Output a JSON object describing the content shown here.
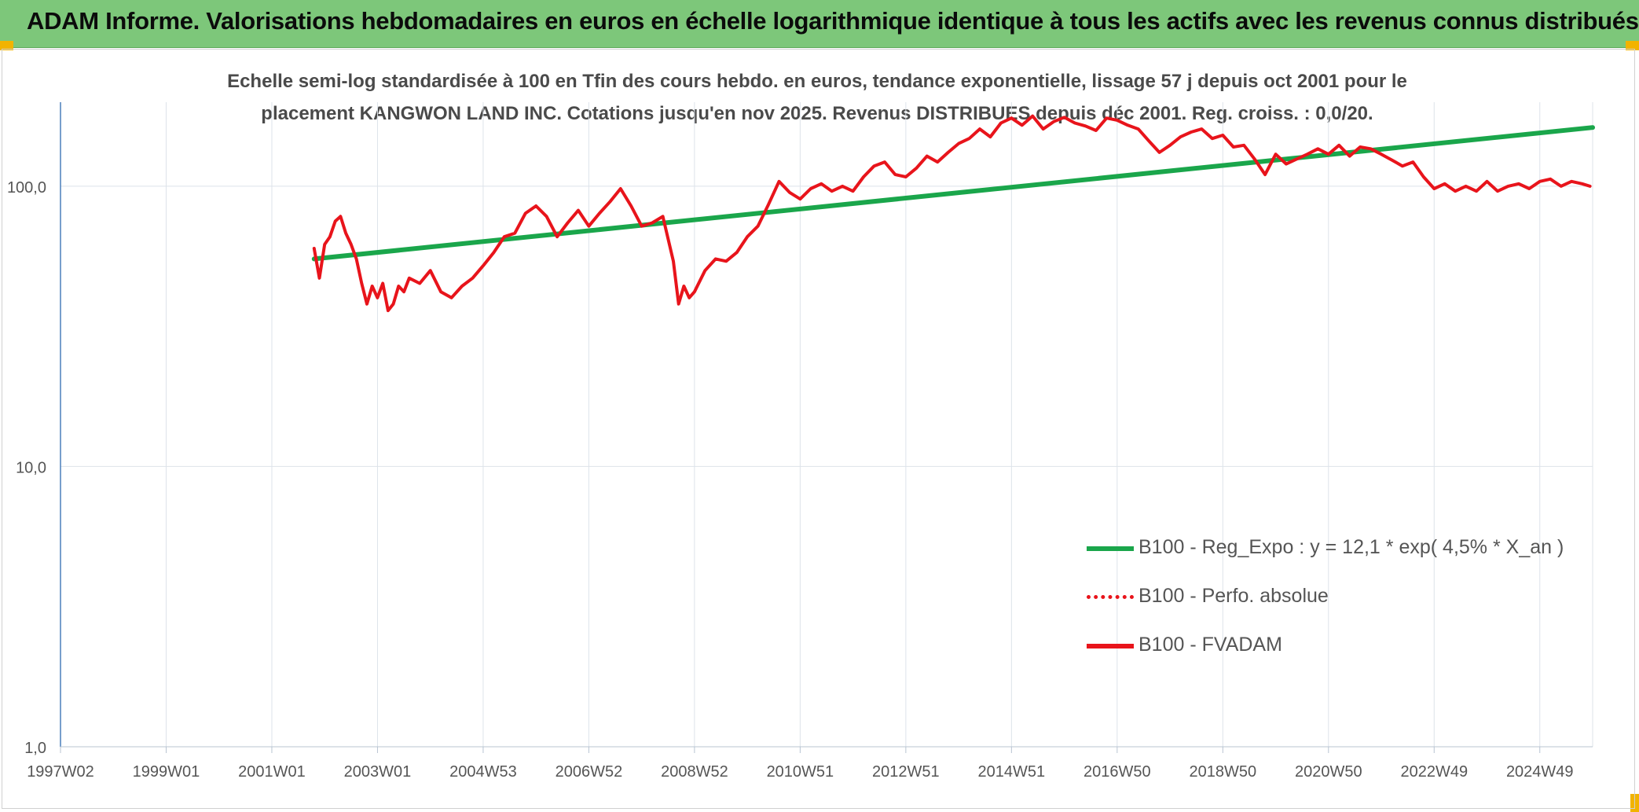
{
  "header": {
    "title": "ADAM Informe. Valorisations hebdomadaires en euros en échelle logarithmique identique à tous les actifs avec les revenus connus distribués"
  },
  "chart_data": {
    "type": "line",
    "title_line1": "Echelle semi-log standardisée à 100 en Tfin des cours hebdo. en euros, tendance exponentielle, lissage 57 j depuis oct 2001 pour le",
    "title_line2": "placement KANGWON LAND INC. Cotations jusqu'en nov 2025. Revenus DISTRIBUES depuis déc 2001. Reg. croiss. : 0,0/20.",
    "y_scale": "log",
    "ylim": [
      1,
      180
    ],
    "xlim": [
      1997.0,
      2026.0
    ],
    "y_ticks": [
      "1,0",
      "10,0",
      "100,0"
    ],
    "y_tick_values": [
      1,
      10,
      100
    ],
    "x_ticks": [
      "1997W02",
      "1999W01",
      "2001W01",
      "2003W01",
      "2004W53",
      "2006W52",
      "2008W52",
      "2010W51",
      "2012W51",
      "2014W51",
      "2016W50",
      "2018W50",
      "2020W50",
      "2022W49",
      "2024W49"
    ],
    "x_tick_values": [
      1997.0,
      1999.0,
      2001.0,
      2003.0,
      2005.0,
      2007.0,
      2009.0,
      2011.0,
      2013.0,
      2015.0,
      2017.0,
      2019.0,
      2021.0,
      2023.0,
      2025.0
    ],
    "grid": true,
    "legend_position": "lower-right",
    "series": [
      {
        "name": "B100 - Reg_Expo : y = 12,1 * exp( 4,5% *  X_an )",
        "color": "#1aa64b",
        "style": "solid",
        "x": [
          2001.8,
          2026.0
        ],
        "y": [
          55,
          162
        ]
      },
      {
        "name": "B100 - Perfo. absolue",
        "color": "#e8141b",
        "style": "dotted",
        "x": [],
        "y": []
      },
      {
        "name": "B100 - FVADAM",
        "color": "#e8141b",
        "style": "solid",
        "x": [
          2001.8,
          2001.9,
          2002.0,
          2002.1,
          2002.2,
          2002.3,
          2002.4,
          2002.5,
          2002.6,
          2002.7,
          2002.8,
          2002.9,
          2003.0,
          2003.1,
          2003.2,
          2003.3,
          2003.4,
          2003.5,
          2003.6,
          2003.8,
          2004.0,
          2004.2,
          2004.4,
          2004.6,
          2004.8,
          2005.0,
          2005.2,
          2005.4,
          2005.6,
          2005.8,
          2006.0,
          2006.2,
          2006.4,
          2006.6,
          2006.8,
          2007.0,
          2007.2,
          2007.4,
          2007.6,
          2007.8,
          2008.0,
          2008.2,
          2008.4,
          2008.6,
          2008.7,
          2008.8,
          2008.9,
          2009.0,
          2009.2,
          2009.4,
          2009.6,
          2009.8,
          2010.0,
          2010.2,
          2010.4,
          2010.6,
          2010.8,
          2011.0,
          2011.2,
          2011.4,
          2011.6,
          2011.8,
          2012.0,
          2012.2,
          2012.4,
          2012.6,
          2012.8,
          2013.0,
          2013.2,
          2013.4,
          2013.6,
          2013.8,
          2014.0,
          2014.2,
          2014.4,
          2014.6,
          2014.8,
          2015.0,
          2015.2,
          2015.4,
          2015.6,
          2015.8,
          2016.0,
          2016.2,
          2016.4,
          2016.6,
          2016.8,
          2017.0,
          2017.2,
          2017.4,
          2017.6,
          2017.8,
          2018.0,
          2018.2,
          2018.4,
          2018.6,
          2018.8,
          2019.0,
          2019.2,
          2019.4,
          2019.6,
          2019.8,
          2020.0,
          2020.2,
          2020.4,
          2020.6,
          2020.8,
          2021.0,
          2021.2,
          2021.4,
          2021.6,
          2021.8,
          2022.0,
          2022.2,
          2022.4,
          2022.6,
          2022.8,
          2023.0,
          2023.2,
          2023.4,
          2023.6,
          2023.8,
          2024.0,
          2024.2,
          2024.4,
          2024.6,
          2024.8,
          2025.0,
          2025.2,
          2025.4,
          2025.6,
          2025.8,
          2025.95
        ],
        "y": [
          60,
          47,
          62,
          66,
          75,
          78,
          68,
          62,
          55,
          45,
          38,
          44,
          40,
          45,
          36,
          38,
          44,
          42,
          47,
          45,
          50,
          42,
          40,
          44,
          47,
          52,
          58,
          66,
          68,
          80,
          85,
          78,
          66,
          74,
          82,
          72,
          80,
          88,
          98,
          85,
          72,
          74,
          78,
          54,
          38,
          44,
          40,
          42,
          50,
          55,
          54,
          58,
          66,
          72,
          86,
          104,
          95,
          90,
          98,
          102,
          96,
          100,
          96,
          108,
          118,
          122,
          110,
          108,
          116,
          128,
          122,
          132,
          142,
          148,
          160,
          150,
          168,
          175,
          165,
          178,
          160,
          170,
          176,
          168,
          164,
          158,
          175,
          172,
          165,
          160,
          145,
          132,
          140,
          150,
          156,
          160,
          148,
          152,
          138,
          140,
          125,
          110,
          130,
          120,
          125,
          130,
          136,
          130,
          140,
          128,
          138,
          136,
          130,
          124,
          118,
          122,
          108,
          98,
          102,
          96,
          100,
          96,
          104,
          96,
          100,
          102,
          98,
          104,
          106,
          100,
          104,
          102,
          100
        ]
      }
    ]
  }
}
